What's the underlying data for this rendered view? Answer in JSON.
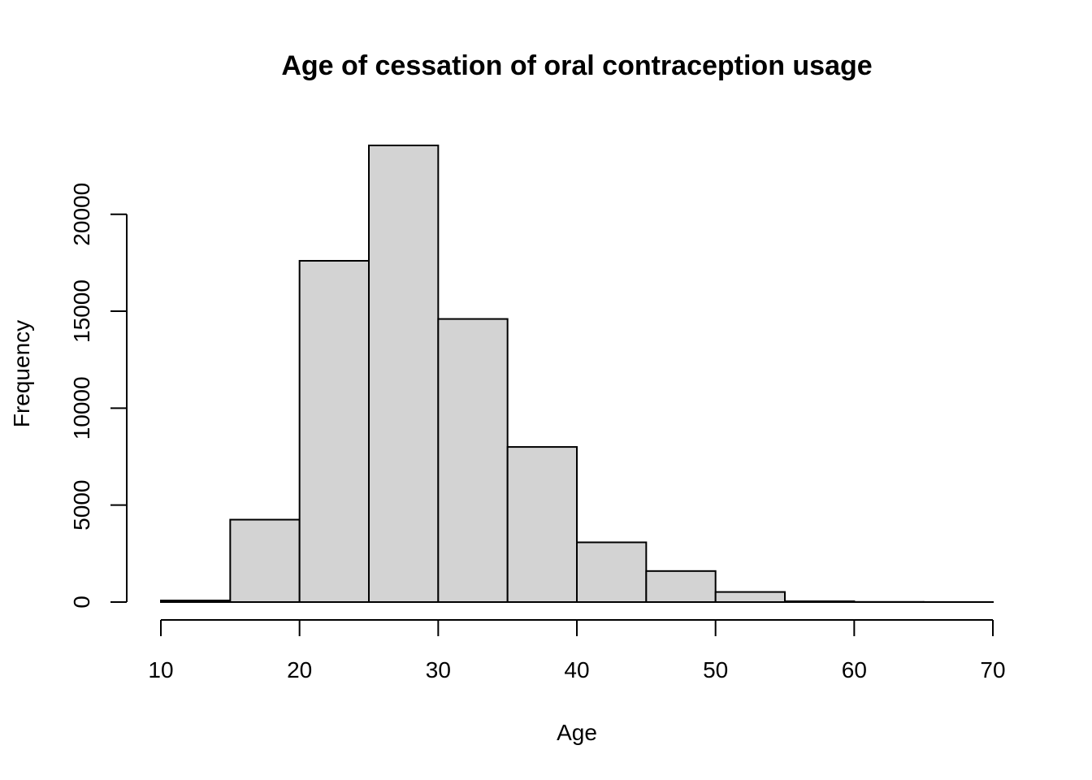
{
  "chart_data": {
    "type": "bar",
    "subtype": "histogram",
    "title": "Age of cessation of oral contraception usage",
    "xlabel": "Age",
    "ylabel": "Frequency",
    "bins": [
      {
        "start": 10,
        "end": 15,
        "count": 80
      },
      {
        "start": 15,
        "end": 20,
        "count": 4250
      },
      {
        "start": 20,
        "end": 25,
        "count": 17600
      },
      {
        "start": 25,
        "end": 30,
        "count": 23550
      },
      {
        "start": 30,
        "end": 35,
        "count": 14600
      },
      {
        "start": 35,
        "end": 40,
        "count": 8000
      },
      {
        "start": 40,
        "end": 45,
        "count": 3080
      },
      {
        "start": 45,
        "end": 50,
        "count": 1600
      },
      {
        "start": 50,
        "end": 55,
        "count": 520
      },
      {
        "start": 55,
        "end": 60,
        "count": 40
      },
      {
        "start": 60,
        "end": 65,
        "count": 8
      },
      {
        "start": 65,
        "end": 70,
        "count": 3
      }
    ],
    "xlim": [
      10,
      70
    ],
    "ylim": [
      0,
      23550
    ],
    "xticks": [
      10,
      20,
      30,
      40,
      50,
      60,
      70
    ],
    "yticks": [
      0,
      5000,
      10000,
      15000,
      20000
    ],
    "bar_color": "#d3d3d3",
    "border_color": "#000000",
    "grid": false,
    "legend": "none"
  }
}
